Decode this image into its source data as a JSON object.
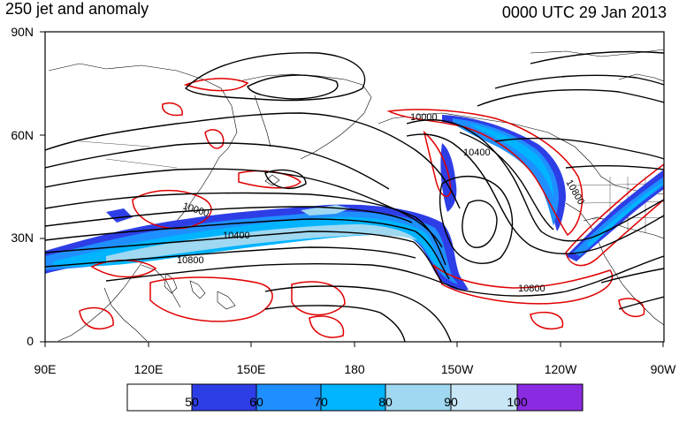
{
  "title_left": "250 jet and anomaly",
  "title_right": "0000 UTC 29 Jan 2013",
  "lat_labels": [
    "90N",
    "60N",
    "30N",
    "0"
  ],
  "lon_labels": [
    "90E",
    "120E",
    "150E",
    "180",
    "150W",
    "120W",
    "90W"
  ],
  "contour_labels": [
    "10000",
    "10400",
    "10800"
  ],
  "colorbar": {
    "labels": [
      "50",
      "60",
      "70",
      "80",
      "90",
      "100"
    ],
    "colors": [
      "#ffffff",
      "#2e3ee6",
      "#1f8fff",
      "#00b4ff",
      "#9fd8f0",
      "#c8e6f5",
      "#8a2be2"
    ]
  },
  "colors": {
    "anomaly": "#e00000",
    "height": "#000000",
    "jet": "#2e3ee6"
  }
}
